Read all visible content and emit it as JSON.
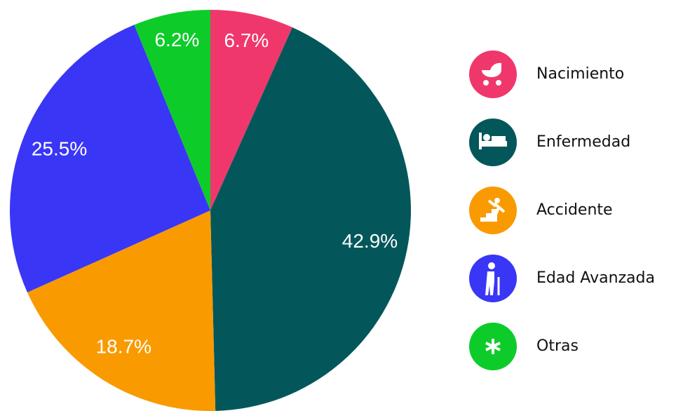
{
  "chart_data": {
    "type": "pie",
    "categories": [
      "Nacimiento",
      "Enfermedad",
      "Accidente",
      "Edad Avanzada",
      "Otras"
    ],
    "values": [
      6.7,
      42.9,
      18.7,
      25.5,
      6.2
    ],
    "value_labels": [
      "6.7%",
      "42.9%",
      "18.7%",
      "25.5%",
      "6.2%"
    ],
    "colors": [
      "#f0376b",
      "#03575a",
      "#f99a00",
      "#3a36f5",
      "#0dcc2a"
    ],
    "legend": "right"
  }
}
